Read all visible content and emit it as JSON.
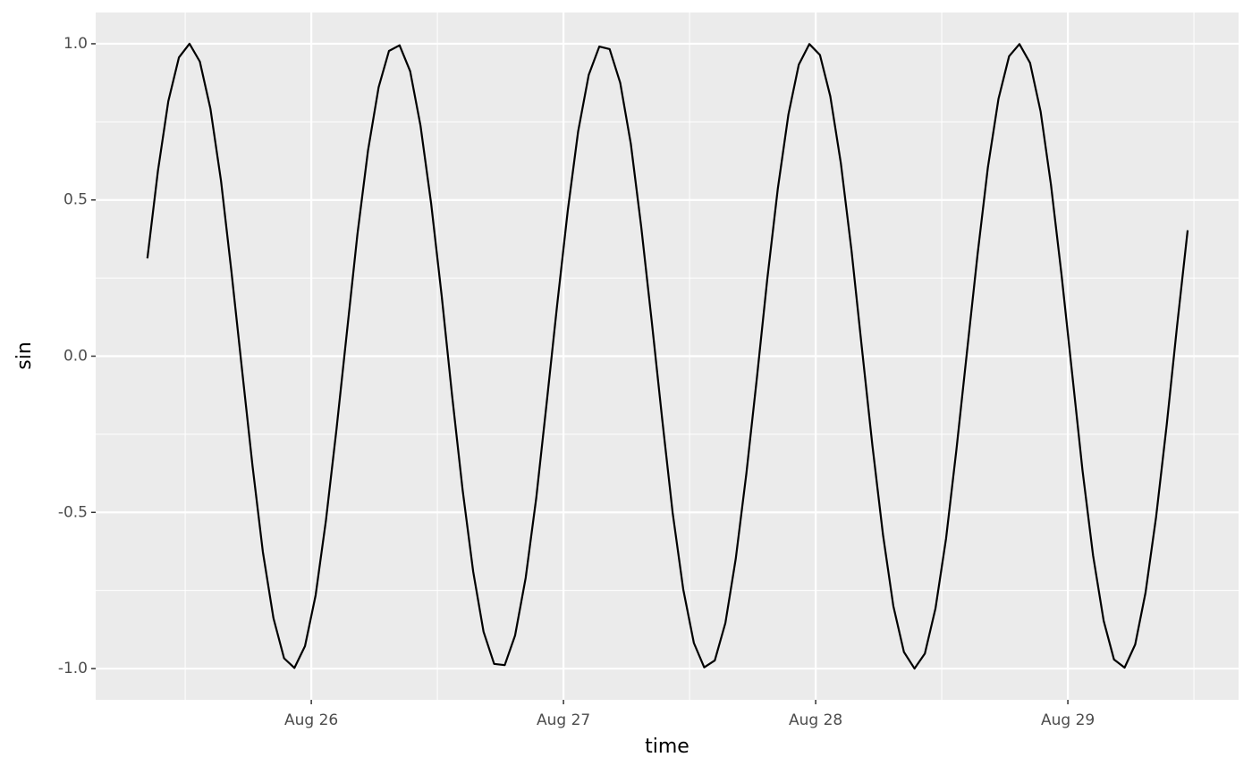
{
  "chart_data": {
    "type": "line",
    "xlabel": "time",
    "ylabel": "sin",
    "x": [
      25.35,
      25.392,
      25.433,
      25.475,
      25.517,
      25.558,
      25.6,
      25.642,
      25.683,
      25.725,
      25.767,
      25.808,
      25.85,
      25.892,
      25.933,
      25.975,
      26.017,
      26.058,
      26.1,
      26.142,
      26.183,
      26.225,
      26.267,
      26.308,
      26.35,
      26.392,
      26.433,
      26.475,
      26.517,
      26.558,
      26.6,
      26.642,
      26.683,
      26.725,
      26.767,
      26.808,
      26.85,
      26.892,
      26.933,
      26.975,
      27.017,
      27.058,
      27.1,
      27.142,
      27.183,
      27.225,
      27.267,
      27.308,
      27.35,
      27.392,
      27.433,
      27.475,
      27.517,
      27.558,
      27.6,
      27.642,
      27.683,
      27.725,
      27.767,
      27.808,
      27.85,
      27.892,
      27.933,
      27.975,
      28.017,
      28.058,
      28.1,
      28.142,
      28.183,
      28.225,
      28.267,
      28.308,
      28.35,
      28.392,
      28.433,
      28.475,
      28.517,
      28.558,
      28.6,
      28.642,
      28.683,
      28.725,
      28.767,
      28.808,
      28.85,
      28.892,
      28.933,
      28.975,
      29.017,
      29.058,
      29.1,
      29.142,
      29.183,
      29.225,
      29.267,
      29.308,
      29.35,
      29.392,
      29.433,
      29.475
    ],
    "series": [
      {
        "color": "#000000",
        "values": [
          0.313,
          0.594,
          0.816,
          0.956,
          1.0,
          0.943,
          0.792,
          0.561,
          0.273,
          -0.041,
          -0.352,
          -0.627,
          -0.839,
          -0.967,
          -0.998,
          -0.928,
          -0.766,
          -0.526,
          -0.233,
          0.083,
          0.391,
          0.659,
          0.861,
          0.977,
          0.995,
          0.912,
          0.738,
          0.49,
          0.193,
          -0.124,
          -0.428,
          -0.69,
          -0.882,
          -0.985,
          -0.989,
          -0.894,
          -0.71,
          -0.454,
          -0.152,
          0.165,
          0.466,
          0.719,
          0.9,
          0.991,
          0.983,
          0.875,
          0.68,
          0.416,
          0.111,
          -0.206,
          -0.502,
          -0.747,
          -0.918,
          -0.996,
          -0.974,
          -0.854,
          -0.649,
          -0.377,
          -0.069,
          0.246,
          0.537,
          0.774,
          0.933,
          0.999,
          0.964,
          0.832,
          0.617,
          0.339,
          0.028,
          -0.286,
          -0.572,
          -0.8,
          -0.947,
          -1.0,
          -0.952,
          -0.808,
          -0.584,
          -0.3,
          0.014,
          0.326,
          0.605,
          0.824,
          0.96,
          0.999,
          0.939,
          0.783,
          0.549,
          0.26,
          -0.055,
          -0.365,
          -0.638,
          -0.847,
          -0.971,
          -0.997,
          -0.923,
          -0.757,
          -0.514,
          -0.22,
          0.096,
          0.403
        ]
      }
    ],
    "xlim": [
      25.145,
      29.677
    ],
    "xticks": [
      {
        "value": 26,
        "label": "Aug 26"
      },
      {
        "value": 27,
        "label": "Aug 27"
      },
      {
        "value": 28,
        "label": "Aug 28"
      },
      {
        "value": 29,
        "label": "Aug 29"
      }
    ],
    "xminorticks": [
      25.5,
      26.5,
      27.5,
      28.5,
      29.5
    ],
    "ylim": [
      -1.1,
      1.1
    ],
    "yticks": [
      {
        "value": -1,
        "label": "-1.0"
      },
      -0.5,
      {
        "value": 0,
        "label": "0.0"
      },
      0.5,
      {
        "value": 1,
        "label": "1.0"
      }
    ],
    "yminorticks": [
      -0.75,
      -0.25,
      0.25,
      0.75
    ],
    "grid": true
  }
}
